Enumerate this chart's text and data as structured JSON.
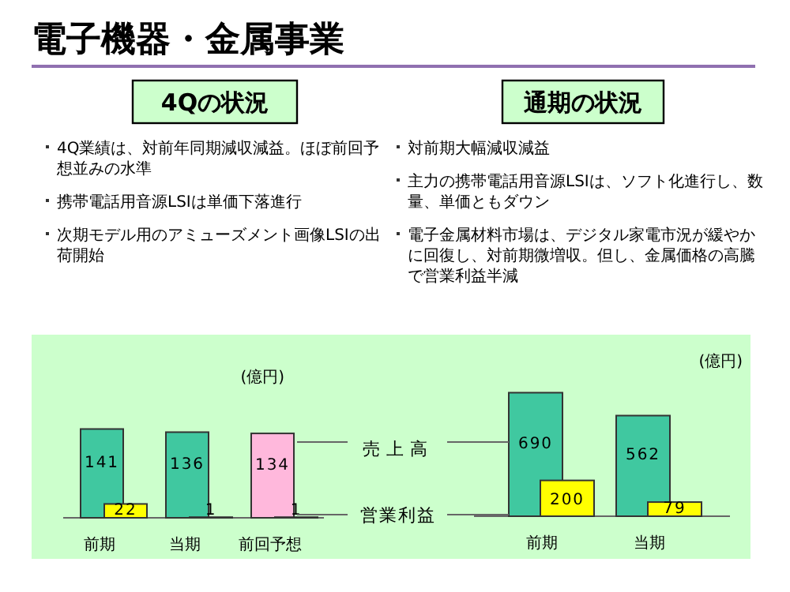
{
  "chart_data": [
    {
      "type": "other",
      "title": "電子機器・金属事業",
      "subtitle": "4Qの状況",
      "annotations": [
        "4Q業績は、対前年同期減収減益。ほぼ前回予想並みの水準",
        "携帯電話用音源LSIは単価下落進行",
        "次期モデル用のアミューズメント画像LSIの出荷開始"
      ]
    },
    {
      "type": "other",
      "subtitle": "通期の状況",
      "annotations": [
        "対前期大幅減収減益",
        "主力の携帯電話用音源LSIは、ソフト化進行し、数量、単価ともダウン",
        "電子金属材料市場は、デジタル家電市況が緩やかに回復し、対前期微増収。但し、金属価格の高騰で営業利益半減"
      ]
    },
    {
      "type": "bar",
      "ylabel": "(億円)",
      "categories": [
        "前期",
        "当期",
        "前回予想"
      ],
      "data_labels": true,
      "series": [
        {
          "name": "売上高",
          "colors": [
            "#40c8a0",
            "#40c8a0",
            "#ffb8dc"
          ],
          "values": [
            141,
            136,
            134
          ]
        },
        {
          "name": "営業利益",
          "colors": [
            "#ffff00",
            "#ffff00",
            "#ffffff"
          ],
          "values": [
            22,
            1,
            1
          ]
        }
      ]
    },
    {
      "type": "bar",
      "ylabel": "(億円)",
      "categories": [
        "前期",
        "当期"
      ],
      "data_labels": true,
      "series": [
        {
          "color": "#40c8a0",
          "values": [
            690,
            562
          ]
        },
        {
          "color": "#ffff00",
          "values": [
            200,
            79
          ]
        }
      ]
    }
  ]
}
